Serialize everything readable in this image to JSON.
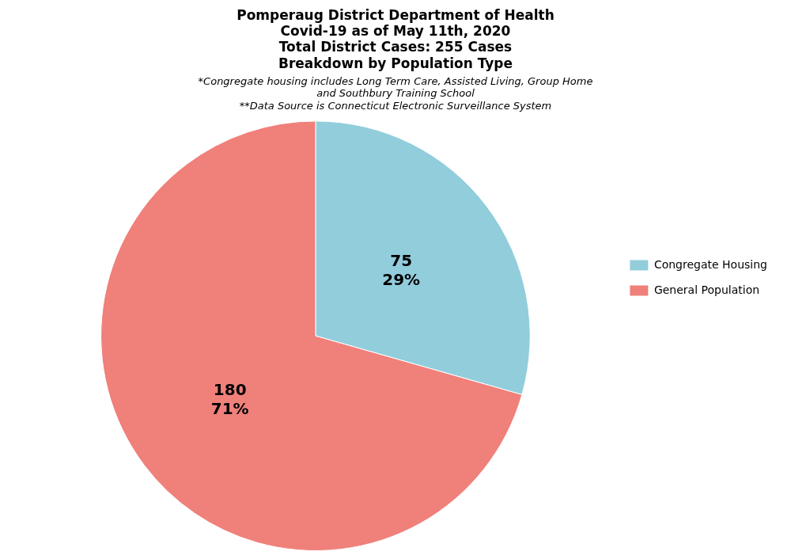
{
  "chart_data": {
    "type": "pie",
    "title": [
      "Pomperaug District Department of Health",
      "Covid-19 as of May 11th, 2020",
      "Total District Cases: 255 Cases",
      "Breakdown by Population Type"
    ],
    "subtitle": [
      "*Congregate housing includes Long Term Care, Assisted Living, Group Home\nand Southbury Training School",
      "**Data Source is Connecticut Electronic Surveillance System"
    ],
    "categories": [
      "Congregate Housing",
      "General Population"
    ],
    "values": [
      75,
      180
    ],
    "value_labels": [
      "75\n29%",
      "180\n71%"
    ],
    "data_labels": true,
    "colors": [
      "#92CDDC",
      "#F0807A"
    ],
    "legend": "right"
  }
}
